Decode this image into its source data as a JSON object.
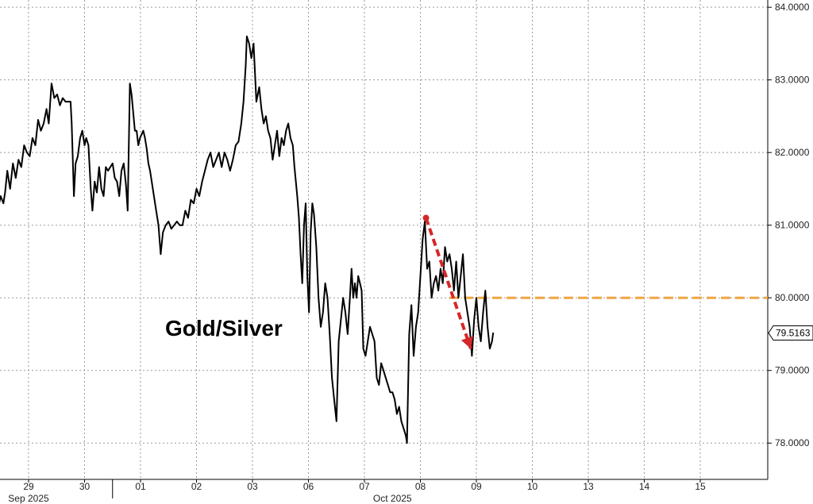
{
  "chart_data": {
    "type": "line",
    "title": "Gold/Silver",
    "xlabel": "",
    "ylabel": "",
    "ylim": [
      77.5,
      84.1
    ],
    "y_ticks": [
      78.0,
      79.0,
      80.0,
      81.0,
      82.0,
      83.0,
      84.0
    ],
    "y_tick_labels": [
      "78.0000",
      "79.0000",
      "80.0000",
      "81.0000",
      "82.0000",
      "83.0000",
      "84.0000"
    ],
    "x_ticks": [
      {
        "label": "29",
        "x": 0
      },
      {
        "label": "30",
        "x": 1
      },
      {
        "label": "01",
        "x": 2
      },
      {
        "label": "02",
        "x": 3
      },
      {
        "label": "03",
        "x": 4
      },
      {
        "label": "06",
        "x": 5
      },
      {
        "label": "07",
        "x": 6
      },
      {
        "label": "08",
        "x": 7
      },
      {
        "label": "09",
        "x": 8
      },
      {
        "label": "10",
        "x": 9
      },
      {
        "label": "13",
        "x": 10
      },
      {
        "label": "14",
        "x": 11
      },
      {
        "label": "15",
        "x": 12
      }
    ],
    "months": [
      {
        "label": "Sep 2025",
        "x": 0
      },
      {
        "label": "Oct 2025",
        "x": 6.5
      }
    ],
    "grid": true,
    "last_value": 79.5163,
    "last_value_label": "79.5163",
    "series": [
      {
        "color": "#000000",
        "points": [
          [
            -0.95,
            83.25
          ],
          [
            -0.9,
            83.05
          ],
          [
            -0.87,
            82.8
          ],
          [
            -0.84,
            82.1
          ],
          [
            -0.8,
            81.6
          ],
          [
            -0.77,
            81.15
          ],
          [
            -0.73,
            81.4
          ],
          [
            -0.69,
            81.7
          ],
          [
            -0.65,
            81.25
          ],
          [
            -0.62,
            81.5
          ],
          [
            -0.6,
            81.3
          ],
          [
            -0.58,
            80.75
          ],
          [
            -0.55,
            81.2
          ],
          [
            -0.5,
            81.4
          ],
          [
            -0.45,
            81.3
          ],
          [
            -0.42,
            81.45
          ],
          [
            -0.38,
            81.75
          ],
          [
            -0.33,
            81.5
          ],
          [
            -0.28,
            81.85
          ],
          [
            -0.23,
            81.65
          ],
          [
            -0.18,
            81.9
          ],
          [
            -0.13,
            81.8
          ],
          [
            -0.08,
            82.1
          ],
          [
            -0.03,
            82.0
          ],
          [
            0.02,
            81.95
          ],
          [
            0.07,
            82.2
          ],
          [
            0.12,
            82.1
          ],
          [
            0.17,
            82.45
          ],
          [
            0.22,
            82.3
          ],
          [
            0.27,
            82.4
          ],
          [
            0.32,
            82.6
          ],
          [
            0.36,
            82.4
          ],
          [
            0.41,
            82.95
          ],
          [
            0.46,
            82.75
          ],
          [
            0.51,
            82.8
          ],
          [
            0.56,
            82.65
          ],
          [
            0.61,
            82.75
          ],
          [
            0.66,
            82.7
          ],
          [
            0.7,
            82.7
          ],
          [
            0.75,
            82.7
          ],
          [
            0.77,
            82.4
          ],
          [
            0.81,
            81.4
          ],
          [
            0.84,
            81.85
          ],
          [
            0.88,
            81.95
          ],
          [
            0.92,
            82.2
          ],
          [
            0.96,
            82.3
          ],
          [
            1.0,
            82.1
          ],
          [
            1.03,
            82.2
          ],
          [
            1.07,
            82.1
          ],
          [
            1.11,
            81.5
          ],
          [
            1.14,
            81.2
          ],
          [
            1.18,
            81.6
          ],
          [
            1.22,
            81.45
          ],
          [
            1.26,
            81.8
          ],
          [
            1.3,
            81.5
          ],
          [
            1.34,
            81.4
          ],
          [
            1.38,
            81.8
          ],
          [
            1.42,
            81.75
          ],
          [
            1.46,
            81.8
          ],
          [
            1.5,
            81.85
          ],
          [
            1.54,
            81.65
          ],
          [
            1.58,
            81.6
          ],
          [
            1.62,
            81.4
          ],
          [
            1.66,
            81.75
          ],
          [
            1.7,
            81.85
          ],
          [
            1.74,
            81.55
          ],
          [
            1.77,
            81.2
          ],
          [
            1.81,
            82.95
          ],
          [
            1.84,
            82.8
          ],
          [
            1.87,
            82.55
          ],
          [
            1.9,
            82.3
          ],
          [
            1.93,
            82.3
          ],
          [
            1.96,
            82.1
          ],
          [
            1.99,
            82.2
          ],
          [
            2.02,
            82.25
          ],
          [
            2.05,
            82.3
          ],
          [
            2.08,
            82.2
          ],
          [
            2.11,
            82.05
          ],
          [
            2.14,
            81.85
          ],
          [
            2.17,
            81.75
          ],
          [
            2.2,
            81.6
          ],
          [
            2.24,
            81.4
          ],
          [
            2.28,
            81.2
          ],
          [
            2.32,
            81.0
          ],
          [
            2.36,
            80.6
          ],
          [
            2.4,
            80.9
          ],
          [
            2.45,
            81.0
          ],
          [
            2.5,
            81.05
          ],
          [
            2.55,
            80.95
          ],
          [
            2.6,
            81.0
          ],
          [
            2.65,
            81.05
          ],
          [
            2.7,
            81.0
          ],
          [
            2.75,
            81.0
          ],
          [
            2.8,
            81.2
          ],
          [
            2.85,
            81.1
          ],
          [
            2.9,
            81.35
          ],
          [
            2.95,
            81.3
          ],
          [
            3.0,
            81.5
          ],
          [
            3.05,
            81.4
          ],
          [
            3.1,
            81.6
          ],
          [
            3.15,
            81.75
          ],
          [
            3.2,
            81.9
          ],
          [
            3.25,
            82.0
          ],
          [
            3.3,
            81.8
          ],
          [
            3.35,
            81.9
          ],
          [
            3.4,
            82.0
          ],
          [
            3.45,
            81.8
          ],
          [
            3.5,
            82.0
          ],
          [
            3.55,
            81.9
          ],
          [
            3.6,
            81.75
          ],
          [
            3.65,
            81.9
          ],
          [
            3.7,
            82.1
          ],
          [
            3.75,
            82.15
          ],
          [
            3.8,
            82.4
          ],
          [
            3.84,
            82.7
          ],
          [
            3.88,
            83.2
          ],
          [
            3.9,
            83.6
          ],
          [
            3.94,
            83.5
          ],
          [
            3.98,
            83.3
          ],
          [
            4.02,
            83.5
          ],
          [
            4.07,
            82.7
          ],
          [
            4.12,
            82.9
          ],
          [
            4.16,
            82.6
          ],
          [
            4.2,
            82.4
          ],
          [
            4.24,
            82.5
          ],
          [
            4.28,
            82.3
          ],
          [
            4.32,
            82.2
          ],
          [
            4.36,
            81.9
          ],
          [
            4.4,
            82.1
          ],
          [
            4.44,
            82.3
          ],
          [
            4.48,
            81.95
          ],
          [
            4.52,
            82.2
          ],
          [
            4.56,
            82.1
          ],
          [
            4.6,
            82.3
          ],
          [
            4.64,
            82.4
          ],
          [
            4.68,
            82.2
          ],
          [
            4.72,
            82.1
          ],
          [
            4.75,
            81.8
          ],
          [
            4.8,
            81.4
          ],
          [
            4.83,
            81.1
          ],
          [
            4.86,
            80.6
          ],
          [
            4.89,
            80.2
          ],
          [
            4.92,
            81.0
          ],
          [
            4.95,
            81.3
          ],
          [
            4.98,
            80.3
          ],
          [
            5.01,
            79.8
          ],
          [
            5.04,
            80.9
          ],
          [
            5.07,
            81.3
          ],
          [
            5.1,
            81.15
          ],
          [
            5.14,
            80.7
          ],
          [
            5.18,
            80.0
          ],
          [
            5.22,
            79.6
          ],
          [
            5.26,
            79.8
          ],
          [
            5.3,
            80.2
          ],
          [
            5.34,
            80.0
          ],
          [
            5.38,
            79.5
          ],
          [
            5.42,
            78.9
          ],
          [
            5.46,
            78.6
          ],
          [
            5.5,
            78.3
          ],
          [
            5.54,
            79.4
          ],
          [
            5.58,
            79.7
          ],
          [
            5.62,
            80.0
          ],
          [
            5.66,
            79.8
          ],
          [
            5.7,
            79.5
          ],
          [
            5.74,
            80.0
          ],
          [
            5.77,
            80.4
          ],
          [
            5.8,
            80.0
          ],
          [
            5.83,
            80.2
          ],
          [
            5.86,
            80.0
          ],
          [
            5.89,
            80.3
          ],
          [
            5.92,
            80.2
          ],
          [
            5.95,
            80.1
          ],
          [
            5.98,
            79.3
          ],
          [
            6.02,
            79.2
          ],
          [
            6.06,
            79.4
          ],
          [
            6.1,
            79.6
          ],
          [
            6.14,
            79.5
          ],
          [
            6.18,
            79.4
          ],
          [
            6.22,
            78.9
          ],
          [
            6.26,
            78.8
          ],
          [
            6.3,
            79.1
          ],
          [
            6.34,
            79.0
          ],
          [
            6.38,
            78.9
          ],
          [
            6.42,
            78.8
          ],
          [
            6.46,
            78.7
          ],
          [
            6.5,
            78.7
          ],
          [
            6.54,
            78.6
          ],
          [
            6.58,
            78.4
          ],
          [
            6.62,
            78.5
          ],
          [
            6.66,
            78.3
          ],
          [
            6.7,
            78.2
          ],
          [
            6.74,
            78.1
          ],
          [
            6.76,
            78.0
          ],
          [
            6.8,
            79.5
          ],
          [
            6.84,
            79.9
          ],
          [
            6.88,
            79.2
          ],
          [
            6.92,
            79.6
          ],
          [
            6.96,
            79.8
          ],
          [
            7.0,
            80.3
          ],
          [
            7.04,
            80.8
          ],
          [
            7.08,
            81.05
          ],
          [
            7.12,
            80.4
          ],
          [
            7.16,
            80.5
          ],
          [
            7.2,
            80.0
          ],
          [
            7.24,
            80.2
          ],
          [
            7.28,
            80.3
          ],
          [
            7.32,
            80.1
          ],
          [
            7.36,
            80.4
          ],
          [
            7.4,
            80.2
          ],
          [
            7.44,
            80.7
          ],
          [
            7.48,
            80.5
          ],
          [
            7.52,
            80.6
          ],
          [
            7.56,
            80.4
          ],
          [
            7.6,
            80.1
          ],
          [
            7.64,
            80.5
          ],
          [
            7.68,
            80.0
          ],
          [
            7.72,
            80.3
          ],
          [
            7.76,
            80.6
          ],
          [
            7.8,
            80.0
          ],
          [
            7.84,
            79.8
          ],
          [
            7.88,
            79.6
          ],
          [
            7.92,
            79.2
          ],
          [
            7.96,
            79.7
          ],
          [
            8.0,
            80.0
          ],
          [
            8.04,
            79.6
          ],
          [
            8.08,
            79.4
          ],
          [
            8.12,
            79.8
          ],
          [
            8.16,
            80.1
          ],
          [
            8.2,
            79.6
          ],
          [
            8.24,
            79.3
          ],
          [
            8.28,
            79.4
          ],
          [
            8.3,
            79.52
          ]
        ]
      }
    ]
  },
  "annotations": {
    "threshold_value": 80.0,
    "threshold_color": "#f0a640",
    "arrow_color": "#d62728"
  }
}
